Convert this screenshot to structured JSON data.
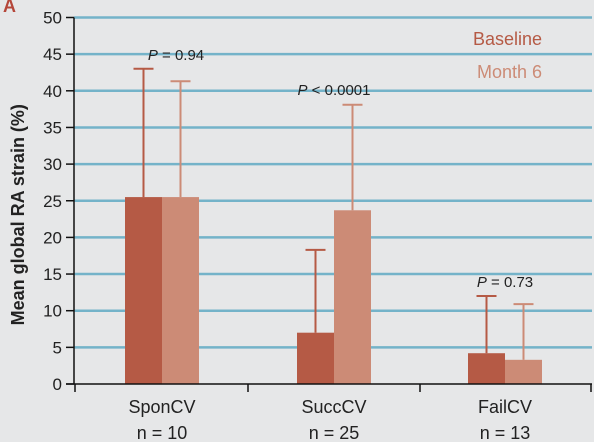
{
  "panel_label": "A",
  "colors": {
    "baseline": "#b55a45",
    "month6": "#cc8b76",
    "grid": "#74b3c9",
    "background": "#e6e7e8"
  },
  "chart_data": {
    "type": "bar",
    "categories": [
      "SponCV",
      "SuccCV",
      "FailCV"
    ],
    "category_sublabels": [
      "n = 10",
      "n = 25",
      "n = 13"
    ],
    "series": [
      {
        "name": "Baseline",
        "values": [
          25.5,
          7.0,
          4.2
        ],
        "error_upper": [
          43.0,
          18.3,
          12.0
        ]
      },
      {
        "name": "Month 6",
        "values": [
          25.5,
          23.7,
          3.3
        ],
        "error_upper": [
          41.3,
          38.1,
          10.9
        ]
      }
    ],
    "annotations": [
      "P = 0.94",
      "P < 0.0001",
      "P = 0.73"
    ],
    "ylabel": "Mean global RA strain (%)",
    "xlabel": "",
    "ylim": [
      0,
      50
    ],
    "yticks": [
      0,
      5,
      10,
      15,
      20,
      25,
      30,
      35,
      40,
      45,
      50
    ],
    "grid": true,
    "legend_position": "top-right"
  }
}
